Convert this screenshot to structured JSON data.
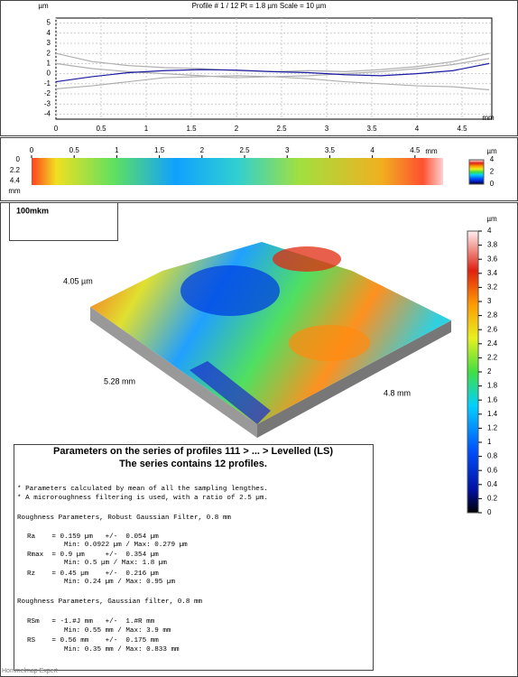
{
  "profile_chart": {
    "type": "line",
    "title": "Profile # 1 / 12 Pt = 1.8 µm  Scale = 10 µm",
    "y_unit": "µm",
    "x_unit": "mm",
    "xlim": [
      0,
      4.83
    ],
    "xticks": [
      0,
      0.5,
      1,
      1.5,
      2,
      2.5,
      3,
      3.5,
      4,
      4.5
    ],
    "ylim": [
      -4.5,
      5.5
    ],
    "yticks": [
      5,
      4,
      3,
      2,
      1,
      0,
      -1,
      -2,
      -3,
      -4
    ],
    "grid": true,
    "x": [
      0,
      0.4,
      0.8,
      1.2,
      1.6,
      2,
      2.4,
      2.8,
      3.2,
      3.6,
      4,
      4.4,
      4.8
    ],
    "series": [
      {
        "color": "#b0b0b0",
        "values": [
          2.0,
          1.2,
          0.8,
          0.6,
          0.5,
          0.3,
          0.2,
          0.3,
          0.2,
          0.4,
          0.7,
          1.2,
          2.0
        ]
      },
      {
        "color": "#b0b0b0",
        "values": [
          -1.5,
          -1.2,
          -0.8,
          -0.4,
          -0.3,
          -0.2,
          -0.3,
          -0.5,
          -0.8,
          -1.0,
          -1.2,
          -1.3,
          -1.6
        ]
      },
      {
        "color": "#b0b0b0",
        "values": [
          1.0,
          0.5,
          0.2,
          0,
          -0.2,
          -0.4,
          -0.3,
          -0.2,
          0,
          0.2,
          0.5,
          0.9,
          1.5
        ]
      },
      {
        "color": "#1a1aa0",
        "values": [
          -0.8,
          -0.3,
          0.1,
          0.3,
          0.4,
          0.35,
          0.2,
          0.1,
          -0.1,
          -0.2,
          0,
          0.3,
          1.0
        ]
      }
    ]
  },
  "map": {
    "x_unit": "mm",
    "y_unit": "mm",
    "xlim": [
      0,
      4.83
    ],
    "xticks": [
      0,
      0.5,
      1,
      1.5,
      2,
      2.5,
      3,
      3.5,
      4,
      4.5
    ],
    "ylim": [
      0,
      5.28
    ],
    "yticks": [
      0,
      2.2,
      4.4
    ],
    "colorbar_unit": "µm",
    "colorbar_lim": [
      0,
      4
    ],
    "colorbar_ticks": [
      4,
      2,
      0
    ]
  },
  "label_box": "100mkm",
  "view_3d": {
    "height_label": "4.05 µm",
    "length_label": "5.28 mm",
    "width_label": "4.8 mm",
    "colorbar_unit": "µm",
    "colorbar_lim": [
      0,
      4
    ],
    "colorbar_ticks": [
      0,
      0.2,
      0.4,
      0.6,
      0.8,
      1,
      1.2,
      1.4,
      1.6,
      1.8,
      2,
      2.2,
      2.4,
      2.6,
      2.8,
      3,
      3.2,
      3.4,
      3.6,
      3.8,
      4
    ]
  },
  "parameters": {
    "title": "Parameters on the series of profiles 111 > ... > Levelled (LS)",
    "subtitle": "The series contains 12 profiles.",
    "lines": [
      "* Parameters calculated by mean of all the sampling lengthes.",
      "* A microroughness filtering is used, with a ratio of 2.5 µm.",
      "Roughness Parameters, Robust Gaussian Filter, 0.8 mm",
      "Ra    = 0.159 µm   +/-  0.054 µm",
      "Min: 0.0922 µm / Max: 0.279 µm",
      "Rmax  = 0.9 µm     +/-  0.354 µm",
      "Min: 0.5 µm / Max: 1.8 µm",
      "Rz    = 0.45 µm    +/-  0.216 µm",
      "Min: 0.24 µm / Max: 0.95 µm",
      "Roughness Parameters, Gaussian filter, 0.8 mm",
      "RSm   = -1.#J mm   +/-  1.#R mm",
      "Min: 0.55 mm / Max: 3.9 mm",
      "RS    = 0.56 mm    +/-  0.175 mm",
      "Min: 0.35 mm / Max: 0.833 mm"
    ]
  },
  "footer": "Hommelmap Expert"
}
